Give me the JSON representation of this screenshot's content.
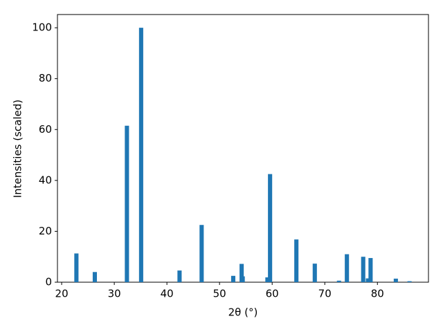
{
  "chart_data": {
    "type": "bar",
    "xlabel": "2θ (°)",
    "ylabel": "Intensities (scaled)",
    "x": [
      22.8,
      26.3,
      32.4,
      35.1,
      42.4,
      46.6,
      52.6,
      54.2,
      54.4,
      59.1,
      59.6,
      64.6,
      68.1,
      72.7,
      74.2,
      77.3,
      78.2,
      78.7,
      83.5,
      86.1
    ],
    "values": [
      11.3,
      4.0,
      61.5,
      100,
      4.6,
      22.5,
      2.5,
      7.2,
      2.3,
      1.9,
      42.5,
      16.8,
      7.3,
      0.6,
      11.0,
      10.0,
      1.5,
      9.5,
      1.4,
      0.4
    ],
    "bar_width": 0.8,
    "color": "#1f77b4",
    "xlim": [
      19.2,
      89.7
    ],
    "xticks": [
      20,
      30,
      40,
      50,
      60,
      70,
      80
    ],
    "ylim": [
      0,
      105.2
    ],
    "yticks": [
      0,
      20,
      40,
      60,
      80,
      100
    ],
    "grid": false
  }
}
